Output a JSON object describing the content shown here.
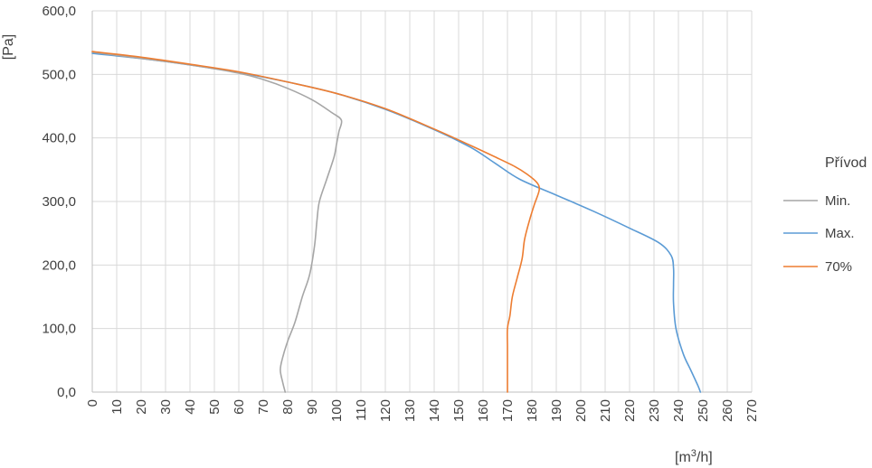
{
  "chart_data": {
    "type": "line",
    "xlabel_main": "[m",
    "xlabel_sup": "3",
    "xlabel_end": "/h]",
    "ylabel": "[Pa]",
    "xlim": [
      0,
      270
    ],
    "ylim": [
      0,
      600
    ],
    "x_ticks": [
      0,
      10,
      20,
      30,
      40,
      50,
      60,
      70,
      80,
      90,
      100,
      110,
      120,
      130,
      140,
      150,
      160,
      170,
      180,
      190,
      200,
      210,
      220,
      230,
      240,
      250,
      260,
      270
    ],
    "y_ticks": [
      0,
      100,
      200,
      300,
      400,
      500,
      600
    ],
    "y_tick_labels": [
      "0,0",
      "100,0",
      "200,0",
      "300,0",
      "400,0",
      "500,0",
      "600,0"
    ],
    "grid": true,
    "legend_title": "Přívod",
    "legend_position": "right",
    "series": [
      {
        "name": "Min.",
        "color": "#a6a6a6",
        "points": [
          [
            0,
            535
          ],
          [
            20,
            525
          ],
          [
            40,
            515
          ],
          [
            60,
            502
          ],
          [
            70,
            492
          ],
          [
            80,
            478
          ],
          [
            90,
            460
          ],
          [
            98,
            440
          ],
          [
            102,
            428
          ],
          [
            101,
            410
          ],
          [
            100,
            390
          ],
          [
            99,
            370
          ],
          [
            96,
            335
          ],
          [
            93,
            300
          ],
          [
            92,
            270
          ],
          [
            91,
            230
          ],
          [
            89,
            185
          ],
          [
            86,
            150
          ],
          [
            83,
            110
          ],
          [
            80,
            80
          ],
          [
            78,
            55
          ],
          [
            77,
            35
          ],
          [
            78,
            15
          ],
          [
            79,
            0
          ]
        ]
      },
      {
        "name": "Max.",
        "color": "#5b9bd5",
        "points": [
          [
            0,
            533
          ],
          [
            20,
            525
          ],
          [
            40,
            515
          ],
          [
            60,
            503
          ],
          [
            80,
            488
          ],
          [
            100,
            470
          ],
          [
            120,
            445
          ],
          [
            140,
            413
          ],
          [
            155,
            385
          ],
          [
            165,
            360
          ],
          [
            175,
            335
          ],
          [
            190,
            310
          ],
          [
            205,
            285
          ],
          [
            220,
            258
          ],
          [
            232,
            235
          ],
          [
            237,
            215
          ],
          [
            238,
            195
          ],
          [
            238,
            170
          ],
          [
            238,
            140
          ],
          [
            239,
            100
          ],
          [
            242,
            60
          ],
          [
            245,
            35
          ],
          [
            248,
            10
          ],
          [
            249,
            0
          ]
        ]
      },
      {
        "name": "70%",
        "color": "#ed7d31",
        "points": [
          [
            0,
            536
          ],
          [
            20,
            527
          ],
          [
            40,
            516
          ],
          [
            60,
            504
          ],
          [
            80,
            488
          ],
          [
            100,
            470
          ],
          [
            120,
            446
          ],
          [
            140,
            414
          ],
          [
            155,
            388
          ],
          [
            165,
            370
          ],
          [
            173,
            355
          ],
          [
            178,
            343
          ],
          [
            182,
            330
          ],
          [
            183,
            318
          ],
          [
            181,
            295
          ],
          [
            179,
            270
          ],
          [
            177,
            240
          ],
          [
            176,
            210
          ],
          [
            174,
            180
          ],
          [
            172,
            150
          ],
          [
            171,
            120
          ],
          [
            170,
            100
          ],
          [
            170,
            70
          ],
          [
            170,
            35
          ],
          [
            170,
            0
          ]
        ]
      }
    ]
  }
}
